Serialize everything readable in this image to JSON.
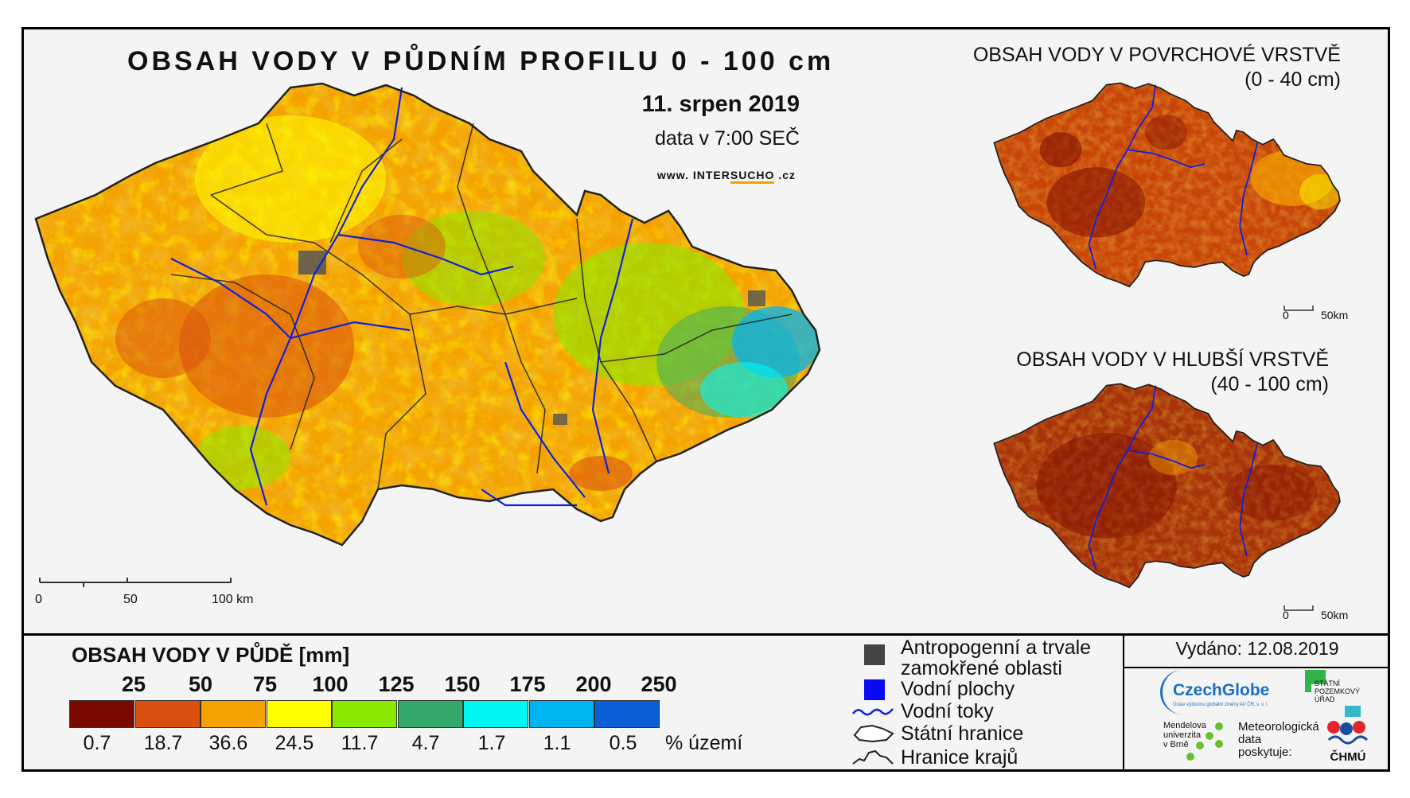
{
  "main_map": {
    "title": "OBSAH VODY V PŮDNÍM PROFILU 0 - 100 cm",
    "date": "11. srpen 2019",
    "data_time": "data v 7:00 SEČ",
    "website_prefix": "www. INTER",
    "website_brand": "SUCHO",
    "website_suffix": " .cz",
    "scale": {
      "ticks": [
        "0",
        "50",
        "100 km"
      ]
    }
  },
  "inset_surface": {
    "title_line1": "OBSAH VODY V POVRCHOVÉ VRSTVĚ",
    "title_line2": "(0 - 40 cm)",
    "scale": {
      "ticks": [
        "0",
        "50km"
      ]
    }
  },
  "inset_deep": {
    "title_line1": "OBSAH VODY V HLUBŠÍ VRSTVĚ",
    "title_line2": "(40 - 100 cm)",
    "scale": {
      "ticks": [
        "0",
        "50km"
      ]
    }
  },
  "legend": {
    "title": "OBSAH VODY V PŮDĚ [mm]",
    "class_breaks": [
      "25",
      "50",
      "75",
      "100",
      "125",
      "150",
      "175",
      "200",
      "250"
    ],
    "classes": [
      {
        "color": "#7a0a00",
        "percent": "0.7"
      },
      {
        "color": "#d9500f",
        "percent": "18.7"
      },
      {
        "color": "#f5a200",
        "percent": "36.6"
      },
      {
        "color": "#ffff00",
        "percent": "24.5"
      },
      {
        "color": "#8be800",
        "percent": "11.7"
      },
      {
        "color": "#33a86b",
        "percent": "4.7"
      },
      {
        "color": "#00f5f5",
        "percent": "1.7"
      },
      {
        "color": "#00b4f0",
        "percent": "1.1"
      },
      {
        "color": "#0a5fd6",
        "percent": "0.5"
      }
    ],
    "percent_label": "% území"
  },
  "symbols": {
    "anthropogenic_line1": "Antropogenní a trvale",
    "anthropogenic_line2": "zamokřené oblasti",
    "water_bodies": "Vodní plochy",
    "rivers": "Vodní toky",
    "state_border": "Státní hranice",
    "regional_border": "Hranice krajů"
  },
  "footer": {
    "issued": "Vydáno: 12.08.2019",
    "logo_czechglobe": "CzechGlobe",
    "czechglobe_tagline": "Ústav výzkumu globální změny AV ČR, v. v. i.",
    "logo_spu_line1": "STÁTNÍ",
    "logo_spu_line2": "POZEMKOVÝ",
    "logo_spu_line3": "ÚŘAD",
    "logo_mendel_line1": "Mendelova",
    "logo_mendel_line2": "univerzita",
    "logo_mendel_line3": "v Brně",
    "met_data_line1": "Meteorologická",
    "met_data_line2": "data",
    "met_data_line3": "poskytuje:",
    "logo_chmu": "ČHMÚ"
  },
  "colors": {
    "river": "#1020e0",
    "anthropogenic": "#555555",
    "water_body": "#0a0af0",
    "border": "#222222"
  }
}
